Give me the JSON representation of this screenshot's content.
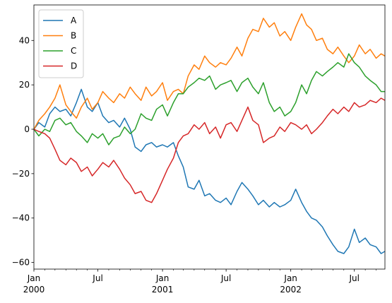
{
  "chart_data": {
    "type": "line",
    "title": "",
    "xlabel": "",
    "ylabel": "",
    "x_range": [
      "2000-01-01",
      "2002-09-26"
    ],
    "ylim": [
      -63,
      56
    ],
    "grid": false,
    "legend_placement": "top-left",
    "y_ticks": [
      {
        "value": 40,
        "label": "40"
      },
      {
        "value": 20,
        "label": "20"
      },
      {
        "value": 0,
        "label": "0"
      },
      {
        "value": -20,
        "label": "−20"
      },
      {
        "value": -40,
        "label": "−40"
      },
      {
        "value": -60,
        "label": "−60"
      }
    ],
    "x_major_ticks": [
      {
        "date": "2000-01-01",
        "label": "Jan",
        "year": "2000"
      },
      {
        "date": "2000-07-01",
        "label": "Jul",
        "year": ""
      },
      {
        "date": "2001-01-01",
        "label": "Jan",
        "year": "2001"
      },
      {
        "date": "2001-07-01",
        "label": "Jul",
        "year": ""
      },
      {
        "date": "2002-01-01",
        "label": "Jan",
        "year": "2002"
      },
      {
        "date": "2002-07-01",
        "label": "Jul",
        "year": ""
      }
    ],
    "series": [
      {
        "name": "A",
        "color": "#1f77b4",
        "points": [
          [
            "2000-01-01",
            0
          ],
          [
            "2000-01-15",
            3
          ],
          [
            "2000-02-01",
            1
          ],
          [
            "2000-02-15",
            7
          ],
          [
            "2000-03-01",
            10
          ],
          [
            "2000-03-15",
            8
          ],
          [
            "2000-04-01",
            9
          ],
          [
            "2000-04-15",
            6
          ],
          [
            "2000-05-01",
            12
          ],
          [
            "2000-05-15",
            18
          ],
          [
            "2000-06-01",
            10
          ],
          [
            "2000-06-15",
            8
          ],
          [
            "2000-07-01",
            12
          ],
          [
            "2000-07-15",
            6
          ],
          [
            "2000-08-01",
            3
          ],
          [
            "2000-08-15",
            4
          ],
          [
            "2000-09-01",
            1
          ],
          [
            "2000-09-15",
            5
          ],
          [
            "2000-10-01",
            0
          ],
          [
            "2000-10-15",
            -8
          ],
          [
            "2000-11-01",
            -10
          ],
          [
            "2000-11-15",
            -7
          ],
          [
            "2000-12-01",
            -6
          ],
          [
            "2000-12-15",
            -8
          ],
          [
            "2001-01-01",
            -7
          ],
          [
            "2001-01-15",
            -8
          ],
          [
            "2001-02-01",
            -6
          ],
          [
            "2001-02-15",
            -12
          ],
          [
            "2001-03-01",
            -17
          ],
          [
            "2001-03-15",
            -26
          ],
          [
            "2001-04-01",
            -27
          ],
          [
            "2001-04-15",
            -23
          ],
          [
            "2001-05-01",
            -30
          ],
          [
            "2001-05-15",
            -29
          ],
          [
            "2001-06-01",
            -32
          ],
          [
            "2001-06-15",
            -33
          ],
          [
            "2001-07-01",
            -31
          ],
          [
            "2001-07-15",
            -34
          ],
          [
            "2001-08-01",
            -28
          ],
          [
            "2001-08-15",
            -24
          ],
          [
            "2001-09-01",
            -27
          ],
          [
            "2001-09-15",
            -30
          ],
          [
            "2001-10-01",
            -34
          ],
          [
            "2001-10-15",
            -32
          ],
          [
            "2001-11-01",
            -35
          ],
          [
            "2001-11-15",
            -33
          ],
          [
            "2001-12-01",
            -35
          ],
          [
            "2001-12-15",
            -34
          ],
          [
            "2002-01-01",
            -32
          ],
          [
            "2002-01-15",
            -27
          ],
          [
            "2002-02-01",
            -33
          ],
          [
            "2002-02-15",
            -37
          ],
          [
            "2002-03-01",
            -40
          ],
          [
            "2002-03-15",
            -41
          ],
          [
            "2002-04-01",
            -44
          ],
          [
            "2002-04-15",
            -48
          ],
          [
            "2002-05-01",
            -52
          ],
          [
            "2002-05-15",
            -55
          ],
          [
            "2002-06-01",
            -56
          ],
          [
            "2002-06-15",
            -53
          ],
          [
            "2002-07-01",
            -45
          ],
          [
            "2002-07-15",
            -51
          ],
          [
            "2002-08-01",
            -49
          ],
          [
            "2002-08-15",
            -52
          ],
          [
            "2002-09-01",
            -53
          ],
          [
            "2002-09-15",
            -56
          ],
          [
            "2002-09-26",
            -55
          ]
        ]
      },
      {
        "name": "B",
        "color": "#ff7f0e",
        "points": [
          [
            "2000-01-01",
            0
          ],
          [
            "2000-01-15",
            4
          ],
          [
            "2000-02-01",
            7
          ],
          [
            "2000-02-15",
            10
          ],
          [
            "2000-03-01",
            14
          ],
          [
            "2000-03-15",
            20
          ],
          [
            "2000-04-01",
            11
          ],
          [
            "2000-04-15",
            8
          ],
          [
            "2000-05-01",
            5
          ],
          [
            "2000-05-15",
            10
          ],
          [
            "2000-06-01",
            14
          ],
          [
            "2000-06-15",
            9
          ],
          [
            "2000-07-01",
            12
          ],
          [
            "2000-07-15",
            17
          ],
          [
            "2000-08-01",
            14
          ],
          [
            "2000-08-15",
            12
          ],
          [
            "2000-09-01",
            16
          ],
          [
            "2000-09-15",
            14
          ],
          [
            "2000-10-01",
            19
          ],
          [
            "2000-10-15",
            16
          ],
          [
            "2000-11-01",
            13
          ],
          [
            "2000-11-15",
            19
          ],
          [
            "2000-12-01",
            15
          ],
          [
            "2000-12-15",
            17
          ],
          [
            "2001-01-01",
            21
          ],
          [
            "2001-01-15",
            13
          ],
          [
            "2001-02-01",
            17
          ],
          [
            "2001-02-15",
            18
          ],
          [
            "2001-03-01",
            16
          ],
          [
            "2001-03-15",
            24
          ],
          [
            "2001-04-01",
            29
          ],
          [
            "2001-04-15",
            27
          ],
          [
            "2001-05-01",
            33
          ],
          [
            "2001-05-15",
            30
          ],
          [
            "2001-06-01",
            28
          ],
          [
            "2001-06-15",
            30
          ],
          [
            "2001-07-01",
            29
          ],
          [
            "2001-07-15",
            32
          ],
          [
            "2001-08-01",
            37
          ],
          [
            "2001-08-15",
            33
          ],
          [
            "2001-09-01",
            41
          ],
          [
            "2001-09-15",
            45
          ],
          [
            "2001-10-01",
            44
          ],
          [
            "2001-10-15",
            50
          ],
          [
            "2001-11-01",
            46
          ],
          [
            "2001-11-15",
            48
          ],
          [
            "2001-12-01",
            42
          ],
          [
            "2001-12-15",
            44
          ],
          [
            "2002-01-01",
            40
          ],
          [
            "2002-01-15",
            46
          ],
          [
            "2002-02-01",
            52
          ],
          [
            "2002-02-15",
            47
          ],
          [
            "2002-03-01",
            45
          ],
          [
            "2002-03-15",
            40
          ],
          [
            "2002-04-01",
            41
          ],
          [
            "2002-04-15",
            36
          ],
          [
            "2002-05-01",
            34
          ],
          [
            "2002-05-15",
            37
          ],
          [
            "2002-06-01",
            33
          ],
          [
            "2002-06-15",
            30
          ],
          [
            "2002-07-01",
            33
          ],
          [
            "2002-07-15",
            38
          ],
          [
            "2002-08-01",
            34
          ],
          [
            "2002-08-15",
            36
          ],
          [
            "2002-09-01",
            32
          ],
          [
            "2002-09-15",
            34
          ],
          [
            "2002-09-26",
            33
          ]
        ]
      },
      {
        "name": "C",
        "color": "#2ca02c",
        "points": [
          [
            "2000-01-01",
            0
          ],
          [
            "2000-01-15",
            -3
          ],
          [
            "2000-02-01",
            0
          ],
          [
            "2000-02-15",
            -1
          ],
          [
            "2000-03-01",
            4
          ],
          [
            "2000-03-15",
            5
          ],
          [
            "2000-04-01",
            2
          ],
          [
            "2000-04-15",
            3
          ],
          [
            "2000-05-01",
            -1
          ],
          [
            "2000-05-15",
            -3
          ],
          [
            "2000-06-01",
            -6
          ],
          [
            "2000-06-15",
            -2
          ],
          [
            "2000-07-01",
            -4
          ],
          [
            "2000-07-15",
            -2
          ],
          [
            "2000-08-01",
            -7
          ],
          [
            "2000-08-15",
            -4
          ],
          [
            "2000-09-01",
            -3
          ],
          [
            "2000-09-15",
            1
          ],
          [
            "2000-10-01",
            -2
          ],
          [
            "2000-10-15",
            0
          ],
          [
            "2000-11-01",
            7
          ],
          [
            "2000-11-15",
            5
          ],
          [
            "2000-12-01",
            4
          ],
          [
            "2000-12-15",
            9
          ],
          [
            "2001-01-01",
            11
          ],
          [
            "2001-01-15",
            6
          ],
          [
            "2001-02-01",
            12
          ],
          [
            "2001-02-15",
            16
          ],
          [
            "2001-03-01",
            16
          ],
          [
            "2001-03-15",
            19
          ],
          [
            "2001-04-01",
            21
          ],
          [
            "2001-04-15",
            23
          ],
          [
            "2001-05-01",
            22
          ],
          [
            "2001-05-15",
            24
          ],
          [
            "2001-06-01",
            18
          ],
          [
            "2001-06-15",
            20
          ],
          [
            "2001-07-01",
            21
          ],
          [
            "2001-07-15",
            22
          ],
          [
            "2001-08-01",
            17
          ],
          [
            "2001-08-15",
            21
          ],
          [
            "2001-09-01",
            23
          ],
          [
            "2001-09-15",
            19
          ],
          [
            "2001-10-01",
            16
          ],
          [
            "2001-10-15",
            21
          ],
          [
            "2001-11-01",
            12
          ],
          [
            "2001-11-15",
            8
          ],
          [
            "2001-12-01",
            10
          ],
          [
            "2001-12-15",
            6
          ],
          [
            "2002-01-01",
            8
          ],
          [
            "2002-01-15",
            12
          ],
          [
            "2002-02-01",
            20
          ],
          [
            "2002-02-15",
            16
          ],
          [
            "2002-03-01",
            22
          ],
          [
            "2002-03-15",
            26
          ],
          [
            "2002-04-01",
            24
          ],
          [
            "2002-04-15",
            26
          ],
          [
            "2002-05-01",
            28
          ],
          [
            "2002-05-15",
            30
          ],
          [
            "2002-06-01",
            28
          ],
          [
            "2002-06-15",
            34
          ],
          [
            "2002-07-01",
            30
          ],
          [
            "2002-07-15",
            28
          ],
          [
            "2002-08-01",
            24
          ],
          [
            "2002-08-15",
            22
          ],
          [
            "2002-09-01",
            20
          ],
          [
            "2002-09-15",
            17
          ],
          [
            "2002-09-26",
            17
          ]
        ]
      },
      {
        "name": "D",
        "color": "#d62728",
        "points": [
          [
            "2000-01-01",
            0
          ],
          [
            "2000-01-15",
            -1
          ],
          [
            "2000-02-01",
            -2
          ],
          [
            "2000-02-15",
            -4
          ],
          [
            "2000-03-01",
            -9
          ],
          [
            "2000-03-15",
            -14
          ],
          [
            "2000-04-01",
            -16
          ],
          [
            "2000-04-15",
            -13
          ],
          [
            "2000-05-01",
            -15
          ],
          [
            "2000-05-15",
            -19
          ],
          [
            "2000-06-01",
            -17
          ],
          [
            "2000-06-15",
            -21
          ],
          [
            "2000-07-01",
            -18
          ],
          [
            "2000-07-15",
            -15
          ],
          [
            "2000-08-01",
            -17
          ],
          [
            "2000-08-15",
            -14
          ],
          [
            "2000-09-01",
            -18
          ],
          [
            "2000-09-15",
            -22
          ],
          [
            "2000-10-01",
            -25
          ],
          [
            "2000-10-15",
            -29
          ],
          [
            "2000-11-01",
            -28
          ],
          [
            "2000-11-15",
            -32
          ],
          [
            "2000-12-01",
            -33
          ],
          [
            "2000-12-15",
            -29
          ],
          [
            "2001-01-01",
            -23
          ],
          [
            "2001-01-15",
            -18
          ],
          [
            "2001-02-01",
            -13
          ],
          [
            "2001-02-15",
            -6
          ],
          [
            "2001-03-01",
            -3
          ],
          [
            "2001-03-15",
            -2
          ],
          [
            "2001-04-01",
            2
          ],
          [
            "2001-04-15",
            0
          ],
          [
            "2001-05-01",
            3
          ],
          [
            "2001-05-15",
            -2
          ],
          [
            "2001-06-01",
            1
          ],
          [
            "2001-06-15",
            -4
          ],
          [
            "2001-07-01",
            2
          ],
          [
            "2001-07-15",
            3
          ],
          [
            "2001-08-01",
            -1
          ],
          [
            "2001-08-15",
            4
          ],
          [
            "2001-09-01",
            10
          ],
          [
            "2001-09-15",
            4
          ],
          [
            "2001-10-01",
            2
          ],
          [
            "2001-10-15",
            -6
          ],
          [
            "2001-11-01",
            -4
          ],
          [
            "2001-11-15",
            -3
          ],
          [
            "2001-12-01",
            1
          ],
          [
            "2001-12-15",
            -1
          ],
          [
            "2002-01-01",
            3
          ],
          [
            "2002-01-15",
            2
          ],
          [
            "2002-02-01",
            0
          ],
          [
            "2002-02-15",
            2
          ],
          [
            "2002-03-01",
            -2
          ],
          [
            "2002-03-15",
            0
          ],
          [
            "2002-04-01",
            3
          ],
          [
            "2002-04-15",
            6
          ],
          [
            "2002-05-01",
            9
          ],
          [
            "2002-05-15",
            7
          ],
          [
            "2002-06-01",
            10
          ],
          [
            "2002-06-15",
            8
          ],
          [
            "2002-07-01",
            12
          ],
          [
            "2002-07-15",
            10
          ],
          [
            "2002-08-01",
            11
          ],
          [
            "2002-08-15",
            13
          ],
          [
            "2002-09-01",
            12
          ],
          [
            "2002-09-15",
            14
          ],
          [
            "2002-09-26",
            13
          ]
        ]
      }
    ]
  }
}
